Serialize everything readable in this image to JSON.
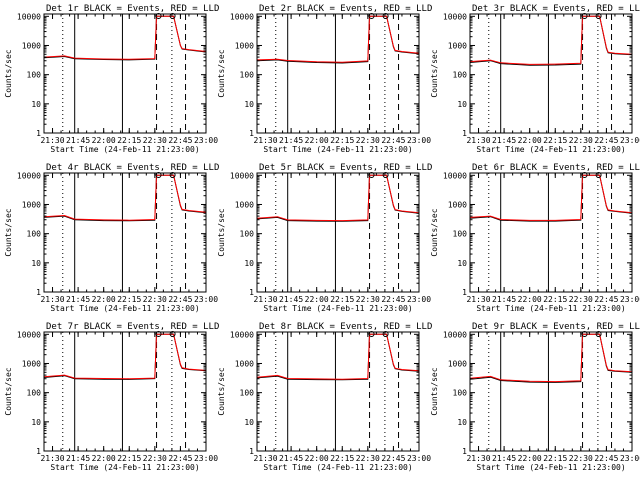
{
  "colors": {
    "background": "#ffffff",
    "axes": "#000000",
    "events": "#000000",
    "lld": "#ff0000"
  },
  "chart_data": {
    "type": "line",
    "grid_layout": "3x3",
    "grid": false,
    "yscale": "log",
    "ylim": [
      1,
      12000
    ],
    "xlim": [
      "21:25",
      "23:00"
    ],
    "ylabel": "Counts/sec",
    "xlabel": "Start Time (24-Feb-11 21:23:00)",
    "xticks": [
      "21:30",
      "21:45",
      "22:00",
      "22:15",
      "22:30",
      "22:45",
      "23:00"
    ],
    "yticks": [
      "1",
      "10",
      "100",
      "1000",
      "10000"
    ],
    "vertical_markers": [
      {
        "time": "21:36",
        "style": "dotted"
      },
      {
        "time": "21:43",
        "style": "solid"
      },
      {
        "time": "22:11",
        "style": "solid"
      },
      {
        "time": "22:31",
        "style": "dashed"
      },
      {
        "time": "22:40",
        "style": "dotted"
      },
      {
        "time": "22:48",
        "style": "dashed"
      }
    ],
    "panels": [
      {
        "title": "Det 1r BLACK = Events, RED = LLD",
        "series": [
          {
            "color": "black",
            "x": [
              "21:25",
              "21:37",
              "21:43",
              "22:00",
              "22:15",
              "22:30",
              "22:31",
              "22:41",
              "22:45",
              "22:46",
              "22:50",
              "23:00"
            ],
            "y": [
              380,
              420,
              350,
              330,
              320,
              340,
              10000,
              10000,
              1000,
              760,
              700,
              600
            ]
          },
          {
            "color": "red",
            "x": [
              "21:25",
              "21:37",
              "21:43",
              "22:00",
              "22:15",
              "22:30",
              "22:31",
              "22:41",
              "22:45",
              "22:46",
              "22:50",
              "23:00"
            ],
            "y": [
              400,
              440,
              370,
              345,
              335,
              355,
              10000,
              10000,
              1000,
              780,
              720,
              620
            ]
          }
        ]
      },
      {
        "title": "Det 2r BLACK = Events, RED = LLD",
        "series": [
          {
            "color": "black",
            "x": [
              "21:25",
              "21:37",
              "21:43",
              "22:00",
              "22:15",
              "22:30",
              "22:31",
              "22:41",
              "22:45",
              "22:46",
              "22:50",
              "23:00"
            ],
            "y": [
              300,
              320,
              290,
              260,
              250,
              280,
              10000,
              10000,
              900,
              650,
              600,
              520
            ]
          },
          {
            "color": "red",
            "x": [
              "21:25",
              "21:37",
              "21:43",
              "22:00",
              "22:15",
              "22:30",
              "22:31",
              "22:41",
              "22:45",
              "22:46",
              "22:50",
              "23:00"
            ],
            "y": [
              320,
              340,
              305,
              275,
              265,
              295,
              10000,
              10000,
              950,
              680,
              620,
              540
            ]
          }
        ]
      },
      {
        "title": "Det 3r BLACK = Events, RED = LLD",
        "series": [
          {
            "color": "black",
            "x": [
              "21:25",
              "21:37",
              "21:43",
              "22:00",
              "22:15",
              "22:30",
              "22:31",
              "22:41",
              "22:45",
              "22:46",
              "22:50",
              "23:00"
            ],
            "y": [
              260,
              300,
              240,
              210,
              215,
              230,
              10000,
              10000,
              800,
              560,
              520,
              480
            ]
          },
          {
            "color": "red",
            "x": [
              "21:25",
              "21:37",
              "21:43",
              "22:00",
              "22:15",
              "22:30",
              "22:31",
              "22:41",
              "22:45",
              "22:46",
              "22:50",
              "23:00"
            ],
            "y": [
              280,
              315,
              255,
              225,
              230,
              245,
              10000,
              10000,
              850,
              590,
              540,
              500
            ]
          }
        ]
      },
      {
        "title": "Det 4r BLACK = Events, RED = LLD",
        "series": [
          {
            "color": "black",
            "x": [
              "21:25",
              "21:37",
              "21:43",
              "22:00",
              "22:15",
              "22:30",
              "22:31",
              "22:41",
              "22:45",
              "22:46",
              "22:50",
              "23:00"
            ],
            "y": [
              360,
              400,
              300,
              280,
              275,
              290,
              10000,
              10000,
              900,
              650,
              600,
              520
            ]
          },
          {
            "color": "red",
            "x": [
              "21:25",
              "21:37",
              "21:43",
              "22:00",
              "22:15",
              "22:30",
              "22:31",
              "22:41",
              "22:45",
              "22:46",
              "22:50",
              "23:00"
            ],
            "y": [
              380,
              420,
              315,
              295,
              290,
              305,
              10000,
              10000,
              950,
              680,
              620,
              540
            ]
          }
        ]
      },
      {
        "title": "Det 5r BLACK = Events, RED = LLD",
        "series": [
          {
            "color": "black",
            "x": [
              "21:25",
              "21:37",
              "21:43",
              "22:00",
              "22:15",
              "22:30",
              "22:31",
              "22:41",
              "22:45",
              "22:46",
              "22:50",
              "23:00"
            ],
            "y": [
              320,
              360,
              280,
              270,
              265,
              280,
              10000,
              10000,
              900,
              640,
              580,
              500
            ]
          },
          {
            "color": "red",
            "x": [
              "21:25",
              "21:37",
              "21:43",
              "22:00",
              "22:15",
              "22:30",
              "22:31",
              "22:41",
              "22:45",
              "22:46",
              "22:50",
              "23:00"
            ],
            "y": [
              340,
              380,
              295,
              285,
              280,
              295,
              10000,
              10000,
              950,
              670,
              600,
              520
            ]
          }
        ]
      },
      {
        "title": "Det 6r BLACK = Events, RED = LLD",
        "series": [
          {
            "color": "black",
            "x": [
              "21:25",
              "21:37",
              "21:43",
              "22:00",
              "22:15",
              "22:30",
              "22:31",
              "22:41",
              "22:45",
              "22:46",
              "22:50",
              "23:00"
            ],
            "y": [
              340,
              380,
              290,
              270,
              270,
              290,
              10000,
              10000,
              850,
              620,
              580,
              500
            ]
          },
          {
            "color": "red",
            "x": [
              "21:25",
              "21:37",
              "21:43",
              "22:00",
              "22:15",
              "22:30",
              "22:31",
              "22:41",
              "22:45",
              "22:46",
              "22:50",
              "23:00"
            ],
            "y": [
              360,
              400,
              305,
              285,
              285,
              305,
              10000,
              10000,
              900,
              650,
              600,
              520
            ]
          }
        ]
      },
      {
        "title": "Det 7r BLACK = Events, RED = LLD",
        "series": [
          {
            "color": "black",
            "x": [
              "21:25",
              "21:37",
              "21:43",
              "22:00",
              "22:15",
              "22:30",
              "22:31",
              "22:41",
              "22:45",
              "22:46",
              "22:50",
              "23:00"
            ],
            "y": [
              330,
              380,
              300,
              290,
              285,
              300,
              10000,
              10000,
              900,
              680,
              620,
              560
            ]
          },
          {
            "color": "red",
            "x": [
              "21:25",
              "21:37",
              "21:43",
              "22:00",
              "22:15",
              "22:30",
              "22:31",
              "22:41",
              "22:45",
              "22:46",
              "22:50",
              "23:00"
            ],
            "y": [
              350,
              400,
              315,
              305,
              300,
              315,
              10000,
              10000,
              950,
              710,
              640,
              580
            ]
          }
        ]
      },
      {
        "title": "Det 8r BLACK = Events, RED = LLD",
        "series": [
          {
            "color": "black",
            "x": [
              "21:25",
              "21:37",
              "21:43",
              "22:00",
              "22:15",
              "22:30",
              "22:31",
              "22:41",
              "22:45",
              "22:46",
              "22:50",
              "23:00"
            ],
            "y": [
              320,
              370,
              290,
              280,
              275,
              290,
              10000,
              10000,
              900,
              660,
              600,
              540
            ]
          },
          {
            "color": "red",
            "x": [
              "21:25",
              "21:37",
              "21:43",
              "22:00",
              "22:15",
              "22:30",
              "22:31",
              "22:41",
              "22:45",
              "22:46",
              "22:50",
              "23:00"
            ],
            "y": [
              340,
              390,
              305,
              295,
              290,
              305,
              10000,
              10000,
              950,
              690,
              620,
              560
            ]
          }
        ]
      },
      {
        "title": "Det 9r BLACK = Events, RED = LLD",
        "series": [
          {
            "color": "black",
            "x": [
              "21:25",
              "21:37",
              "21:43",
              "22:00",
              "22:15",
              "22:30",
              "22:31",
              "22:41",
              "22:45",
              "22:46",
              "22:50",
              "23:00"
            ],
            "y": [
              290,
              340,
              260,
              230,
              225,
              240,
              10000,
              10000,
              800,
              580,
              540,
              500
            ]
          },
          {
            "color": "red",
            "x": [
              "21:25",
              "21:37",
              "21:43",
              "22:00",
              "22:15",
              "22:30",
              "22:31",
              "22:41",
              "22:45",
              "22:46",
              "22:50",
              "23:00"
            ],
            "y": [
              310,
              360,
              275,
              245,
              240,
              255,
              10000,
              10000,
              850,
              610,
              560,
              520
            ]
          }
        ]
      }
    ]
  }
}
